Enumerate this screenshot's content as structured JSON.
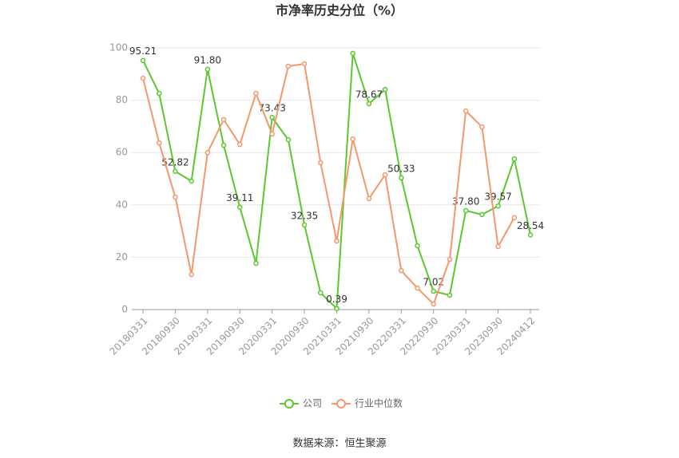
{
  "chart_data": {
    "type": "line",
    "title": "市净率历史分位（%）",
    "source": "数据来源：恒生聚源",
    "categories": [
      "20180331",
      null,
      "20180930",
      null,
      "20190331",
      null,
      "20190930",
      null,
      "20200331",
      null,
      "20200930",
      null,
      "20210331",
      null,
      "20210930",
      null,
      "20220331",
      null,
      "20220930",
      null,
      "20230331",
      null,
      "20230930",
      null,
      "20240412"
    ],
    "series": [
      {
        "name": "公司",
        "color": "#5cc72e",
        "values": [
          95.21,
          82.6,
          52.82,
          49.1,
          91.8,
          62.8,
          39.11,
          17.7,
          73.43,
          64.9,
          32.35,
          6.4,
          0.39,
          97.9,
          78.67,
          84.1,
          50.33,
          24.4,
          7.02,
          5.5,
          37.8,
          36.3,
          39.57,
          57.6,
          28.54
        ],
        "value_labels": [
          "95.21",
          null,
          "52.82",
          null,
          "91.80",
          null,
          "39.11",
          null,
          "73.43",
          null,
          "32.35",
          null,
          "0.39",
          null,
          "78.67",
          null,
          "50.33",
          null,
          "7.02",
          null,
          "37.80",
          null,
          "39.57",
          null,
          "28.54"
        ]
      },
      {
        "name": "行业中位数",
        "color": "#f5976b",
        "values": [
          88.4,
          63.7,
          43.0,
          13.4,
          60.0,
          72.6,
          63.1,
          82.6,
          67.1,
          93.0,
          93.9,
          56.1,
          26.2,
          65.2,
          42.4,
          51.5,
          14.9,
          8.2,
          2.1,
          19.2,
          75.9,
          69.8,
          24.1,
          35.1,
          null
        ]
      }
    ],
    "ylim": [
      0,
      100
    ],
    "yticks": [
      0,
      20,
      40,
      60,
      80,
      100
    ],
    "grid": true
  }
}
